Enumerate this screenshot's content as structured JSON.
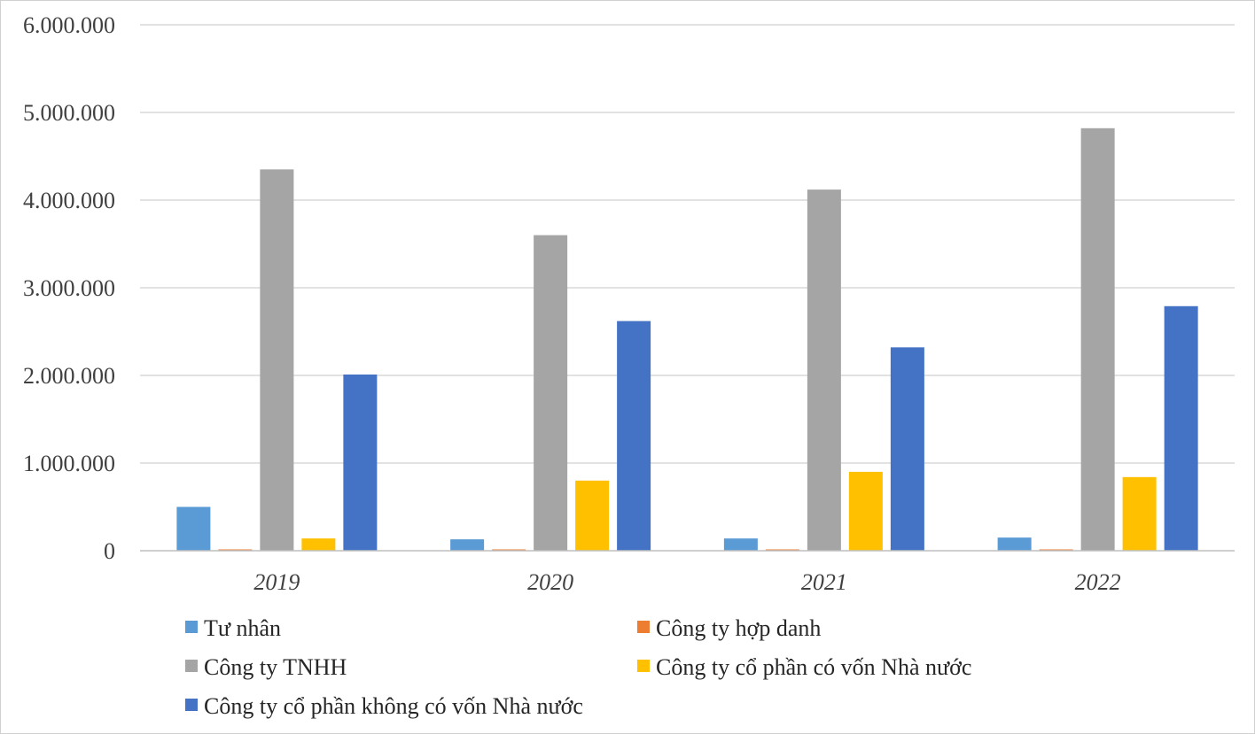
{
  "chart_data": {
    "type": "bar",
    "title": "",
    "xlabel": "",
    "ylabel": "",
    "categories": [
      "2019",
      "2020",
      "2021",
      "2022"
    ],
    "ylim": [
      0,
      6000000
    ],
    "yticks": [
      0,
      1000000,
      2000000,
      3000000,
      4000000,
      5000000,
      6000000
    ],
    "ytick_labels": [
      "0",
      "1.000.000",
      "2.000.000",
      "3.000.000",
      "4.000.000",
      "5.000.000",
      "6.000.000"
    ],
    "grid": true,
    "legend_position": "bottom",
    "series": [
      {
        "name": "Tư nhân",
        "color": "#5B9BD5",
        "values": [
          500000,
          130000,
          140000,
          150000
        ]
      },
      {
        "name": "Công ty hợp danh",
        "color": "#ED7D31",
        "values": [
          15000,
          3000,
          3000,
          15000
        ]
      },
      {
        "name": "Công ty TNHH",
        "color": "#A5A5A5",
        "values": [
          4350000,
          3600000,
          4120000,
          4820000
        ]
      },
      {
        "name": "Công ty cổ phần có vốn Nhà nước",
        "color": "#FFC000",
        "values": [
          140000,
          800000,
          900000,
          840000
        ]
      },
      {
        "name": "Công ty cổ phần không có vốn Nhà nước",
        "color": "#4472C4",
        "values": [
          2010000,
          2620000,
          2320000,
          2790000
        ]
      }
    ]
  }
}
